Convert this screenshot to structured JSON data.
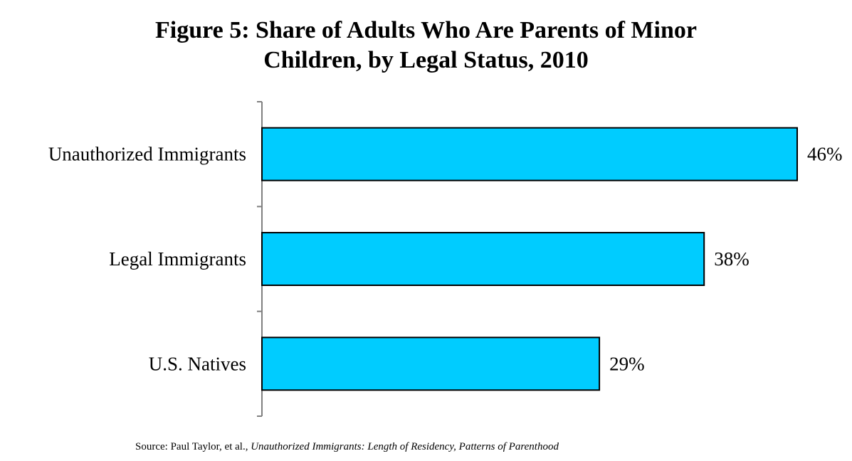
{
  "chart_data": {
    "type": "bar",
    "orientation": "horizontal",
    "title_line1": "Figure 5: Share of Adults Who Are Parents of Minor",
    "title_line2": "Children, by Legal Status, 2010",
    "categories": [
      "Unauthorized Immigrants",
      "Legal Immigrants",
      "U.S. Natives"
    ],
    "values": [
      46,
      38,
      29
    ],
    "value_labels": [
      "46%",
      "38%",
      "29%"
    ],
    "xlim": [
      0,
      46
    ],
    "grid": false,
    "bar_color": "#00ccff",
    "bar_edge_color": "#000000"
  },
  "source": {
    "prefix": "Source: Paul Taylor, et al.,",
    "italic": "Unauthorized Immigrants: Length of Residency, Patterns of Parenthood"
  }
}
